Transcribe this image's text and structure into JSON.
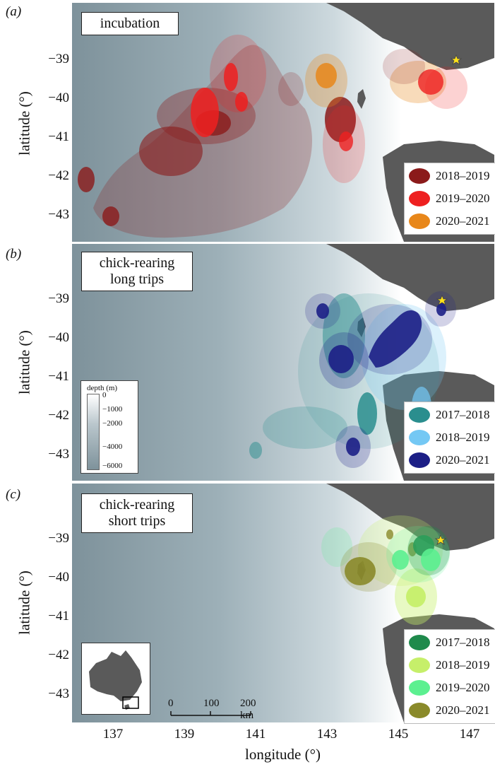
{
  "panels": [
    {
      "tag": "(a)",
      "title": "incubation",
      "legend": [
        {
          "label": "2018–2019",
          "color": "#8b1a1a"
        },
        {
          "label": "2019–2020",
          "color": "#ee2020"
        },
        {
          "label": "2020–2021",
          "color": "#e8871a"
        }
      ]
    },
    {
      "tag": "(b)",
      "title": "chick-rearing long trips",
      "legend": [
        {
          "label": "2017–2018",
          "color": "#2a8e8e"
        },
        {
          "label": "2018–2019",
          "color": "#74c8f4"
        },
        {
          "label": "2020–2021",
          "color": "#1c1f86"
        }
      ]
    },
    {
      "tag": "(c)",
      "title": "chick-rearing short trips",
      "legend": [
        {
          "label": "2017–2018",
          "color": "#1f8a4c"
        },
        {
          "label": "2018–2019",
          "color": "#c6ef6a"
        },
        {
          "label": "2019–2020",
          "color": "#5cf090"
        },
        {
          "label": "2020–2021",
          "color": "#8a8a2a"
        }
      ]
    }
  ],
  "axes": {
    "ylabel": "latitude (°)",
    "xlabel": "longitude (°)",
    "yticks": [
      "−39",
      "−40",
      "−41",
      "−42",
      "−43"
    ],
    "xticks": [
      "137",
      "139",
      "141",
      "143",
      "145",
      "147"
    ]
  },
  "depth_legend": {
    "title": "depth (m)",
    "ticks": [
      "0",
      "−1000",
      "−2000",
      "−4000",
      "−6000"
    ]
  },
  "scale_bar": {
    "labels": [
      "0",
      "100",
      "200 km"
    ]
  },
  "colors": {
    "land": "#5a5a5a",
    "ocean_deep": "#8fa3ad",
    "ocean_shelf": "#ffffff",
    "star": "#ffe21a"
  }
}
